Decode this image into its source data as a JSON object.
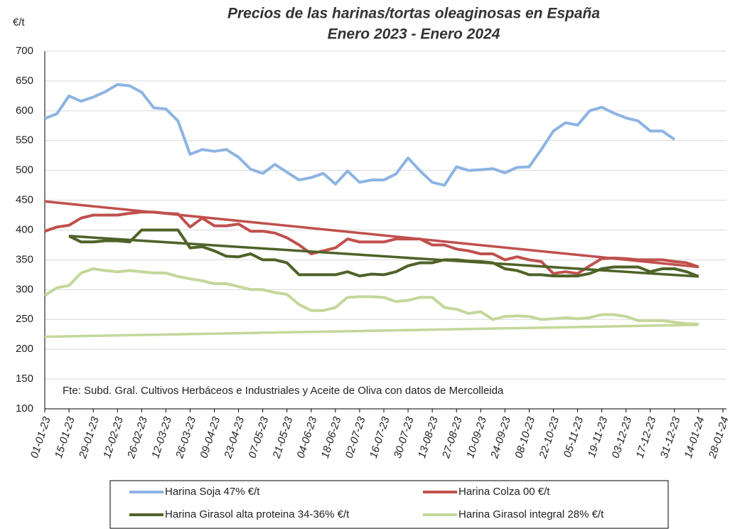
{
  "chart_data": {
    "type": "line",
    "title": "Precios de las harinas/tortas oleaginosas en España",
    "subtitle": "Enero 2023 - Enero 2024",
    "y_label": "€/t",
    "annotation": "Fte: Subd. Gral. Cultivos Herbáceos e Industriales y Aceite de Oliva con datos de Mercolleida",
    "x": [
      "01-01-23",
      "08-01-23",
      "15-01-23",
      "22-01-23",
      "29-01-23",
      "05-02-23",
      "12-02-23",
      "19-02-23",
      "26-02-23",
      "05-03-23",
      "12-03-23",
      "19-03-23",
      "26-03-23",
      "02-04-23",
      "09-04-23",
      "16-04-23",
      "23-04-23",
      "30-04-23",
      "07-05-23",
      "14-05-23",
      "21-05-23",
      "28-05-23",
      "04-06-23",
      "11-06-23",
      "18-06-23",
      "25-06-23",
      "02-07-23",
      "09-07-23",
      "16-07-23",
      "23-07-23",
      "30-07-23",
      "06-08-23",
      "13-08-23",
      "20-08-23",
      "27-08-23",
      "03-09-23",
      "10-09-23",
      "17-09-23",
      "24-09-23",
      "01-10-23",
      "08-10-23",
      "15-10-23",
      "22-10-23",
      "29-10-23",
      "05-11-23",
      "12-11-23",
      "19-11-23",
      "26-11-23",
      "03-12-23",
      "10-12-23",
      "17-12-23",
      "24-12-23",
      "31-12-23",
      "07-01-24",
      "14-01-24"
    ],
    "series": [
      {
        "name": "Harina Soja  47% €/t",
        "color": "#8db4e2",
        "values": [
          587,
          595,
          625,
          616,
          623,
          632,
          644,
          642,
          631,
          605,
          603,
          583,
          527,
          535,
          532,
          535,
          522,
          502,
          495,
          510,
          497,
          484,
          488,
          495,
          477,
          499,
          480,
          484,
          484,
          494,
          521,
          499,
          480,
          475,
          506,
          500,
          501,
          503,
          496,
          505,
          506,
          535,
          566,
          580,
          576,
          600,
          606,
          596,
          588,
          583,
          566,
          566,
          552,
          null,
          null
        ]
      },
      {
        "name": "Harina Colza 00 €/t",
        "color": "#c0504d",
        "values": [
          398,
          405,
          408,
          420,
          425,
          425,
          425,
          428,
          430,
          430,
          428,
          427,
          405,
          420,
          407,
          407,
          410,
          398,
          398,
          395,
          387,
          375,
          360,
          365,
          370,
          385,
          380,
          380,
          380,
          385,
          385,
          385,
          375,
          375,
          368,
          365,
          360,
          360,
          350,
          355,
          350,
          347,
          327,
          330,
          327,
          340,
          352,
          353,
          352,
          350,
          350,
          350,
          347,
          345,
          338
        ]
      },
      {
        "name": "Harina Girasol alta proteina 34-36% €/t",
        "color": "#4f6228",
        "values": [
          null,
          null,
          390,
          380,
          380,
          382,
          382,
          380,
          400,
          400,
          400,
          400,
          370,
          372,
          365,
          356,
          355,
          360,
          350,
          350,
          345,
          325,
          325,
          325,
          325,
          330,
          323,
          326,
          325,
          330,
          340,
          345,
          345,
          350,
          350,
          348,
          347,
          345,
          335,
          332,
          325,
          325,
          323,
          323,
          323,
          327,
          335,
          338,
          338,
          338,
          330,
          335,
          335,
          330,
          322
        ]
      },
      {
        "name": "Harina Girasol integral 28% €/t",
        "color": "#c4d79b",
        "values": [
          290,
          303,
          307,
          328,
          335,
          332,
          330,
          332,
          330,
          328,
          328,
          322,
          318,
          315,
          310,
          310,
          305,
          300,
          300,
          295,
          292,
          275,
          265,
          265,
          270,
          287,
          288,
          288,
          287,
          280,
          282,
          287,
          287,
          270,
          267,
          260,
          263,
          250,
          255,
          256,
          255,
          250,
          251,
          253,
          251,
          253,
          258,
          258,
          255,
          248,
          248,
          248,
          245,
          243,
          242
        ]
      }
    ],
    "trendlines": [
      {
        "color": "#c0504d",
        "x": [
          "01-01-23",
          "14-01-24"
        ],
        "values": [
          448,
          338
        ]
      },
      {
        "color": "#4f6228",
        "x": [
          "15-01-23",
          "14-01-24"
        ],
        "values": [
          390,
          322
        ]
      },
      {
        "color": "#c4d79b",
        "x": [
          "01-01-23",
          "14-01-24"
        ],
        "values": [
          221,
          241
        ]
      }
    ],
    "xlim": [
      "01-01-23",
      "28-01-24"
    ],
    "xticks": [
      "01-01-23",
      "15-01-23",
      "29-01-23",
      "12-02-23",
      "26-02-23",
      "12-03-23",
      "26-03-23",
      "09-04-23",
      "23-04-23",
      "07-05-23",
      "21-05-23",
      "04-06-23",
      "18-06-23",
      "02-07-23",
      "16-07-23",
      "30-07-23",
      "13-08-23",
      "27-08-23",
      "10-09-23",
      "24-09-23",
      "08-10-23",
      "22-10-23",
      "05-11-23",
      "19-11-23",
      "03-12-23",
      "17-12-23",
      "31-12-23",
      "14-01-24",
      "28-01-24"
    ],
    "ylim": [
      100,
      700
    ],
    "yticks": [
      100,
      150,
      200,
      250,
      300,
      350,
      400,
      450,
      500,
      550,
      600,
      650,
      700
    ],
    "grid": true,
    "legend": "bottom"
  }
}
